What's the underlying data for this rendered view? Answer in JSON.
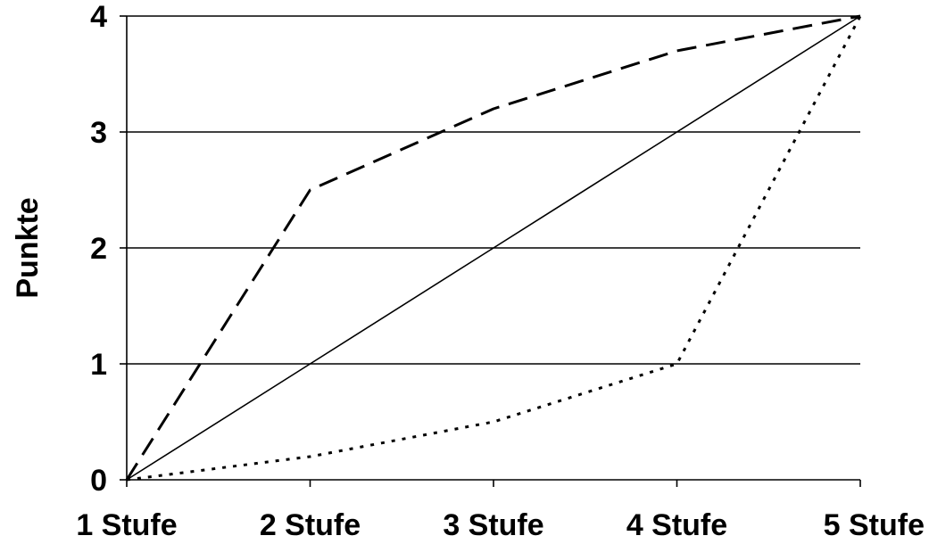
{
  "chart_data": {
    "type": "line",
    "categories": [
      "1 Stufe",
      "2 Stufe",
      "3 Stufe",
      "4 Stufe",
      "5 Stufe"
    ],
    "ylabel": "Punkte",
    "xlabel": "",
    "title": "",
    "ylim": [
      0,
      4
    ],
    "yticks": [
      "0",
      "1",
      "2",
      "3",
      "4"
    ],
    "grid": "horizontal",
    "legend": "none",
    "series": [
      {
        "style": "dashed",
        "color": "#000000",
        "values": [
          0,
          2.5,
          3.2,
          3.7,
          4
        ]
      },
      {
        "style": "solid",
        "color": "#000000",
        "values": [
          0,
          1,
          2,
          3,
          4
        ]
      },
      {
        "style": "dotted",
        "color": "#000000",
        "values": [
          0,
          0.2,
          0.5,
          1,
          4
        ]
      }
    ]
  }
}
